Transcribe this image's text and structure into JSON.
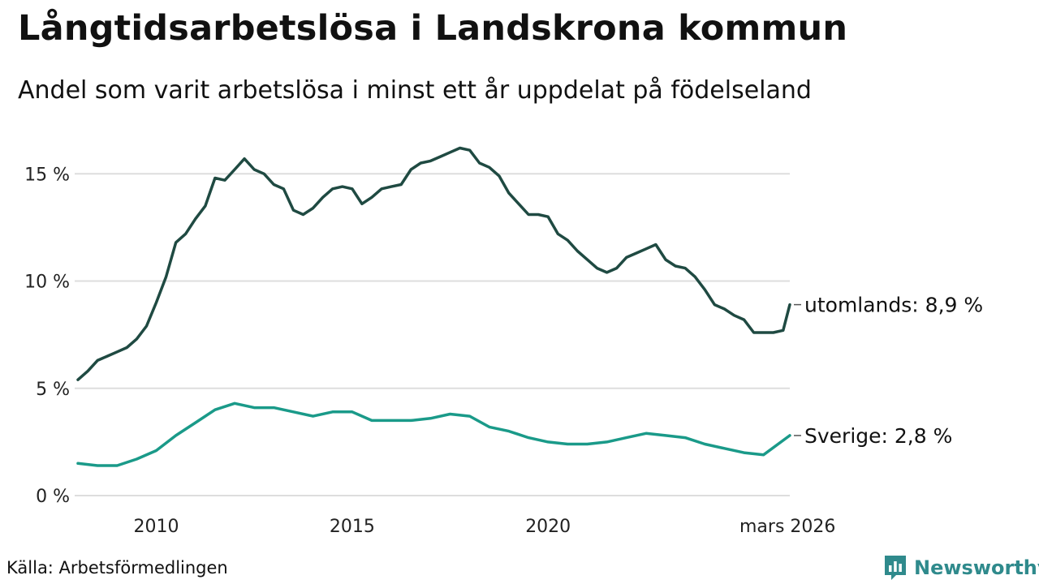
{
  "header": {
    "title": "Långtidsarbetslösa i Landskrona kommun",
    "subtitle": "Andel som varit arbetslösa i minst ett år uppdelat på födelseland"
  },
  "footer": {
    "source": "Källa: Arbetsförmedlingen",
    "brand": "Newsworthy"
  },
  "colors": {
    "utomlands": "#1f4a42",
    "sverige": "#1a9a89",
    "grid": "#dddddd",
    "brand": "#2f8a8c"
  },
  "chart_data": {
    "type": "line",
    "title": "Långtidsarbetslösa i Landskrona kommun",
    "subtitle": "Andel som varit arbetslösa i minst ett år uppdelat på födelseland",
    "xlabel": "",
    "ylabel": "",
    "x_range": [
      2008.0,
      2026.17
    ],
    "ylim": [
      0,
      16.5
    ],
    "y_ticks": [
      0,
      5,
      10,
      15
    ],
    "y_tick_labels": [
      "0 %",
      "5 %",
      "10 %",
      "15 %"
    ],
    "x_ticks": [
      2010,
      2015,
      2020,
      2026.17
    ],
    "x_tick_labels": [
      "2010",
      "2015",
      "2020",
      "mars 2026"
    ],
    "grid": true,
    "series": [
      {
        "name": "utomlands",
        "end_label": "utomlands: 8,9 %",
        "points": [
          [
            2008.0,
            5.4
          ],
          [
            2008.25,
            5.8
          ],
          [
            2008.5,
            6.3
          ],
          [
            2008.75,
            6.5
          ],
          [
            2009.0,
            6.7
          ],
          [
            2009.25,
            6.9
          ],
          [
            2009.5,
            7.3
          ],
          [
            2009.75,
            7.9
          ],
          [
            2010.0,
            9.0
          ],
          [
            2010.25,
            10.2
          ],
          [
            2010.5,
            11.8
          ],
          [
            2010.75,
            12.2
          ],
          [
            2011.0,
            12.9
          ],
          [
            2011.25,
            13.5
          ],
          [
            2011.5,
            14.8
          ],
          [
            2011.75,
            14.7
          ],
          [
            2012.0,
            15.2
          ],
          [
            2012.25,
            15.7
          ],
          [
            2012.5,
            15.2
          ],
          [
            2012.75,
            15.0
          ],
          [
            2013.0,
            14.5
          ],
          [
            2013.25,
            14.3
          ],
          [
            2013.5,
            13.3
          ],
          [
            2013.75,
            13.1
          ],
          [
            2014.0,
            13.4
          ],
          [
            2014.25,
            13.9
          ],
          [
            2014.5,
            14.3
          ],
          [
            2014.75,
            14.4
          ],
          [
            2015.0,
            14.3
          ],
          [
            2015.25,
            13.6
          ],
          [
            2015.5,
            13.9
          ],
          [
            2015.75,
            14.3
          ],
          [
            2016.0,
            14.4
          ],
          [
            2016.25,
            14.5
          ],
          [
            2016.5,
            15.2
          ],
          [
            2016.75,
            15.5
          ],
          [
            2017.0,
            15.6
          ],
          [
            2017.25,
            15.8
          ],
          [
            2017.5,
            16.0
          ],
          [
            2017.75,
            16.2
          ],
          [
            2018.0,
            16.1
          ],
          [
            2018.25,
            15.5
          ],
          [
            2018.5,
            15.3
          ],
          [
            2018.75,
            14.9
          ],
          [
            2019.0,
            14.1
          ],
          [
            2019.25,
            13.6
          ],
          [
            2019.5,
            13.1
          ],
          [
            2019.75,
            13.1
          ],
          [
            2020.0,
            13.0
          ],
          [
            2020.25,
            12.2
          ],
          [
            2020.5,
            11.9
          ],
          [
            2020.75,
            11.4
          ],
          [
            2021.0,
            11.0
          ],
          [
            2021.25,
            10.6
          ],
          [
            2021.5,
            10.4
          ],
          [
            2021.75,
            10.6
          ],
          [
            2022.0,
            11.1
          ],
          [
            2022.25,
            11.3
          ],
          [
            2022.5,
            11.5
          ],
          [
            2022.75,
            11.7
          ],
          [
            2023.0,
            11.0
          ],
          [
            2023.25,
            10.7
          ],
          [
            2023.5,
            10.6
          ],
          [
            2023.75,
            10.2
          ],
          [
            2024.0,
            9.6
          ],
          [
            2024.25,
            8.9
          ],
          [
            2024.5,
            8.7
          ],
          [
            2024.75,
            8.4
          ],
          [
            2025.0,
            8.2
          ],
          [
            2025.25,
            7.6
          ],
          [
            2025.5,
            7.6
          ],
          [
            2025.75,
            7.6
          ],
          [
            2026.0,
            7.7
          ],
          [
            2026.17,
            8.9
          ]
        ]
      },
      {
        "name": "Sverige",
        "end_label": "Sverige: 2,8 %",
        "points": [
          [
            2008.0,
            1.5
          ],
          [
            2008.5,
            1.4
          ],
          [
            2009.0,
            1.4
          ],
          [
            2009.5,
            1.7
          ],
          [
            2010.0,
            2.1
          ],
          [
            2010.5,
            2.8
          ],
          [
            2011.0,
            3.4
          ],
          [
            2011.5,
            4.0
          ],
          [
            2012.0,
            4.3
          ],
          [
            2012.5,
            4.1
          ],
          [
            2013.0,
            4.1
          ],
          [
            2013.5,
            3.9
          ],
          [
            2014.0,
            3.7
          ],
          [
            2014.5,
            3.9
          ],
          [
            2015.0,
            3.9
          ],
          [
            2015.5,
            3.5
          ],
          [
            2016.0,
            3.5
          ],
          [
            2016.5,
            3.5
          ],
          [
            2017.0,
            3.6
          ],
          [
            2017.5,
            3.8
          ],
          [
            2018.0,
            3.7
          ],
          [
            2018.5,
            3.2
          ],
          [
            2019.0,
            3.0
          ],
          [
            2019.5,
            2.7
          ],
          [
            2020.0,
            2.5
          ],
          [
            2020.5,
            2.4
          ],
          [
            2021.0,
            2.4
          ],
          [
            2021.5,
            2.5
          ],
          [
            2022.0,
            2.7
          ],
          [
            2022.5,
            2.9
          ],
          [
            2023.0,
            2.8
          ],
          [
            2023.5,
            2.7
          ],
          [
            2024.0,
            2.4
          ],
          [
            2024.5,
            2.2
          ],
          [
            2025.0,
            2.0
          ],
          [
            2025.5,
            1.9
          ],
          [
            2026.17,
            2.8
          ]
        ]
      }
    ]
  }
}
